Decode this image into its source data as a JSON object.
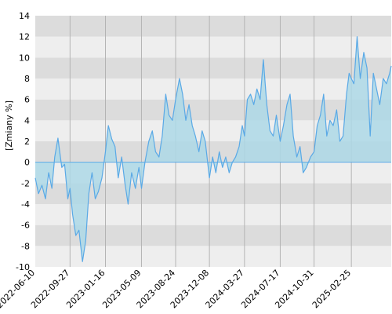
{
  "chart_data": {
    "type": "area",
    "ylabel": "[Zmiany %]",
    "xlabel": "",
    "ylim": [
      -10,
      14
    ],
    "yticks": [
      -10,
      -8,
      -6,
      -4,
      -2,
      0,
      2,
      4,
      6,
      8,
      10,
      12,
      14
    ],
    "xlim": [
      "2022-06-10",
      "2025-06-30"
    ],
    "xticks": [
      "2022-06-10",
      "2022-09-27",
      "2023-01-16",
      "2023-05-09",
      "2023-08-24",
      "2023-12-08",
      "2024-03-27",
      "2024-07-17",
      "2024-10-31",
      "2025-02-25"
    ],
    "grid": true,
    "colors": {
      "line": "#5aa9e6",
      "fill": "#add8e6",
      "band_dark": "#dcdcdc",
      "band_light": "#eeeeee",
      "zero_line": "#5aa9e6"
    },
    "series": [
      {
        "x": [
          "2022-06-10",
          "2022-06-20",
          "2022-07-01",
          "2022-07-12",
          "2022-07-22",
          "2022-08-01",
          "2022-08-10",
          "2022-08-20",
          "2022-09-01",
          "2022-09-10",
          "2022-09-20",
          "2022-09-27",
          "2022-10-05",
          "2022-10-15",
          "2022-10-25",
          "2022-11-05",
          "2022-11-15",
          "2022-11-25",
          "2022-12-05",
          "2022-12-15",
          "2022-12-25",
          "2023-01-05",
          "2023-01-16",
          "2023-01-25",
          "2023-02-05",
          "2023-02-15",
          "2023-02-25",
          "2023-03-08",
          "2023-03-18",
          "2023-03-28",
          "2023-04-08",
          "2023-04-20",
          "2023-05-01",
          "2023-05-09",
          "2023-05-20",
          "2023-06-01",
          "2023-06-12",
          "2023-06-22",
          "2023-07-03",
          "2023-07-13",
          "2023-07-24",
          "2023-08-03",
          "2023-08-14",
          "2023-08-24",
          "2023-09-05",
          "2023-09-15",
          "2023-09-25",
          "2023-10-05",
          "2023-10-15",
          "2023-10-25",
          "2023-11-05",
          "2023-11-15",
          "2023-11-25",
          "2023-12-08",
          "2023-12-18",
          "2023-12-28",
          "2024-01-08",
          "2024-01-18",
          "2024-01-28",
          "2024-02-08",
          "2024-02-18",
          "2024-02-28",
          "2024-03-10",
          "2024-03-20",
          "2024-03-27",
          "2024-04-05",
          "2024-04-15",
          "2024-04-25",
          "2024-05-05",
          "2024-05-15",
          "2024-05-25",
          "2024-06-05",
          "2024-06-15",
          "2024-06-25",
          "2024-07-05",
          "2024-07-17",
          "2024-07-27",
          "2024-08-07",
          "2024-08-17",
          "2024-08-27",
          "2024-09-07",
          "2024-09-17",
          "2024-09-27",
          "2024-10-07",
          "2024-10-20",
          "2024-10-31",
          "2024-11-10",
          "2024-11-20",
          "2024-11-30",
          "2024-12-10",
          "2024-12-20",
          "2024-12-30",
          "2025-01-10",
          "2025-01-20",
          "2025-01-30",
          "2025-02-10",
          "2025-02-18",
          "2025-02-25",
          "2025-03-05",
          "2025-03-15",
          "2025-03-25",
          "2025-04-05",
          "2025-04-15",
          "2025-04-25",
          "2025-05-05",
          "2025-05-15",
          "2025-05-25",
          "2025-06-05",
          "2025-06-15",
          "2025-06-25",
          "2025-06-30"
        ],
        "y": [
          -1.5,
          -3.0,
          -2.2,
          -3.5,
          -1.0,
          -2.5,
          0.5,
          2.3,
          -0.5,
          -0.2,
          -3.5,
          -2.5,
          -5.0,
          -7.0,
          -6.5,
          -9.5,
          -7.5,
          -3.0,
          -1.0,
          -3.5,
          -2.8,
          -1.5,
          1.0,
          3.5,
          2.2,
          1.5,
          -1.5,
          0.5,
          -2.0,
          -4.0,
          -1.0,
          -2.5,
          -0.5,
          -2.5,
          0.0,
          2.0,
          3.0,
          1.0,
          0.5,
          2.5,
          6.5,
          4.5,
          4.0,
          6.0,
          8.0,
          6.5,
          4.0,
          5.5,
          3.5,
          2.5,
          1.0,
          3.0,
          2.0,
          -1.5,
          0.5,
          -1.0,
          1.0,
          -0.5,
          0.5,
          -1.0,
          0.0,
          0.5,
          1.5,
          3.5,
          2.5,
          6.0,
          6.5,
          5.5,
          7.0,
          6.0,
          9.8,
          5.5,
          3.0,
          2.5,
          4.5,
          2.0,
          3.5,
          5.5,
          6.5,
          2.5,
          0.5,
          1.5,
          -1.0,
          -0.5,
          0.5,
          1.0,
          3.5,
          4.5,
          6.5,
          2.5,
          4.0,
          3.5,
          5.0,
          2.0,
          2.5,
          6.5,
          8.5,
          8.0,
          7.5,
          12.0,
          8.0,
          10.5,
          9.0,
          2.5,
          8.5,
          7.0,
          5.5,
          8.0,
          7.5,
          8.5,
          9.2
        ]
      }
    ]
  }
}
